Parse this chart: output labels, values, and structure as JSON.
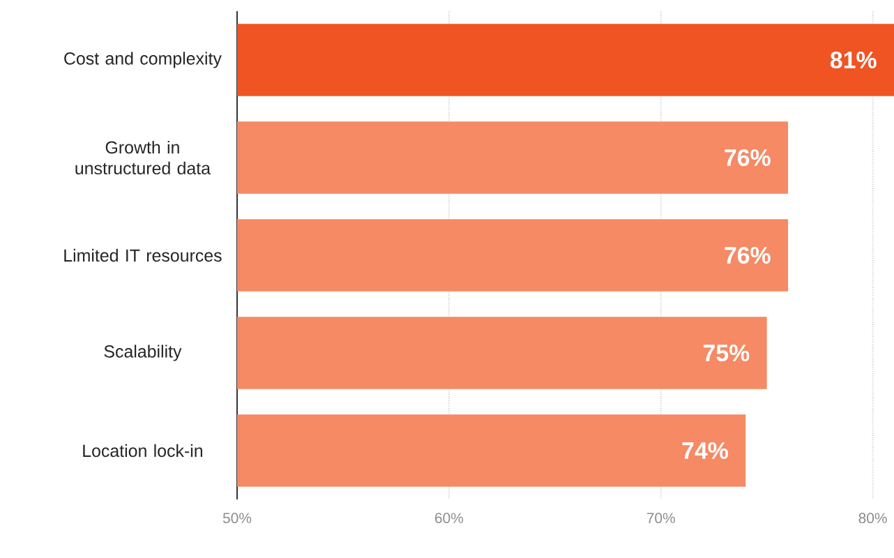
{
  "chart_data": {
    "type": "bar",
    "orientation": "horizontal",
    "categories": [
      "Cost and complexity",
      "Growth in unstructured data",
      "Limited IT resources",
      "Scalability",
      "Location lock-in"
    ],
    "values": [
      81,
      76,
      76,
      75,
      74
    ],
    "value_labels": [
      "81%",
      "76%",
      "76%",
      "75%",
      "74%"
    ],
    "colors": [
      "#f05423",
      "#f58a65",
      "#f58a65",
      "#f58a65",
      "#f58a65"
    ],
    "xlim": [
      50,
      81
    ],
    "xticks": [
      {
        "value": 50,
        "label": "50%"
      },
      {
        "value": 60,
        "label": "60%"
      },
      {
        "value": 70,
        "label": "70%"
      },
      {
        "value": 80,
        "label": "80%"
      }
    ],
    "grid": "x"
  }
}
